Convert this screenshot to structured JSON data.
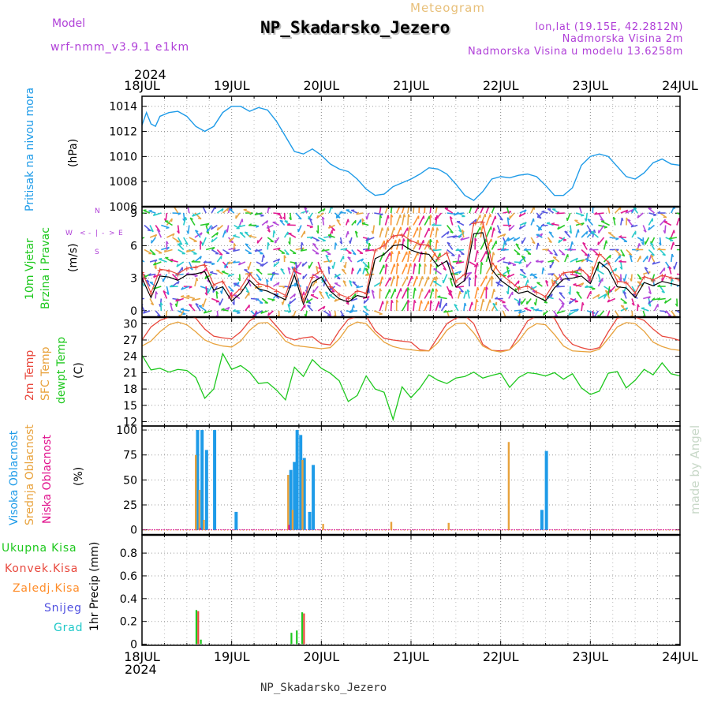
{
  "header": {
    "model_label": "Model",
    "model_name": "wrf-nmm_v3.9.1 e1km",
    "meteogram_label": "Meteogram",
    "station_title": "NP_Skadarsko_Jezero",
    "lonlat": "lon,lat (19.15E, 42.2812N)",
    "elevation": "Nadmorska Visina 2m",
    "model_elevation": "Nadmorska Visina u modelu 13.6258m",
    "year_top": "2024",
    "year_bottom": "2024",
    "footer_station": "NP_Skadarsko_Jezero",
    "credit": "made by Angel"
  },
  "colors": {
    "pressure": "#1e9be8",
    "temp2m": "#e8473c",
    "sfc": "#e8a23c",
    "dewpt": "#1ec81e",
    "high_cloud": "#1e9be8",
    "mid_cloud": "#e8a23c",
    "low_cloud": "#e0108c",
    "total_precip": "#1ec81e",
    "convective": "#e8473c",
    "frozen": "#ff8c28",
    "snow": "#5050e0",
    "graupel": "#1ec8c8",
    "wind_title": "#1ec81e",
    "compass": "#b040d8"
  },
  "chart_data": [
    {
      "type": "line",
      "panel": "pressure",
      "title_lines": [
        "Pritisak na nivou mora"
      ],
      "ylabel": "(hPa)",
      "x_ticks": [
        "18JUL",
        "19JUL",
        "20JUL",
        "21JUL",
        "22JUL",
        "23JUL",
        "24JUL"
      ],
      "ylim": [
        1006,
        1014.8
      ],
      "yticks": [
        1006,
        1008,
        1010,
        1012,
        1014
      ],
      "grid": true,
      "series": [
        {
          "x": [
            0,
            0.05,
            0.1,
            0.15,
            0.2,
            0.3,
            0.4,
            0.5,
            0.6,
            0.7,
            0.8,
            0.9,
            1.0,
            1.1,
            1.2,
            1.3,
            1.4,
            1.5,
            1.6,
            1.7,
            1.8,
            1.9,
            2.0,
            2.1,
            2.2,
            2.3,
            2.4,
            2.5,
            2.6,
            2.7,
            2.8,
            2.9,
            3.0,
            3.1,
            3.2,
            3.3,
            3.4,
            3.5,
            3.6,
            3.7,
            3.8,
            3.9,
            4.0,
            4.1,
            4.2,
            4.3,
            4.4,
            4.5,
            4.6,
            4.7,
            4.8,
            4.9,
            5.0,
            5.1,
            5.2,
            5.3,
            5.4,
            5.5,
            5.6,
            5.7,
            5.8,
            5.9,
            6.0
          ],
          "y": [
            1012.5,
            1013.5,
            1012.6,
            1012.4,
            1013.2,
            1013.5,
            1013.6,
            1013.2,
            1012.4,
            1012.0,
            1012.4,
            1013.5,
            1014.0,
            1014.0,
            1013.6,
            1013.9,
            1013.7,
            1012.8,
            1011.6,
            1010.4,
            1010.2,
            1010.6,
            1010.1,
            1009.4,
            1009.0,
            1008.8,
            1008.2,
            1007.4,
            1006.9,
            1007.0,
            1007.6,
            1007.9,
            1008.2,
            1008.6,
            1009.1,
            1009.0,
            1008.6,
            1007.8,
            1006.9,
            1006.5,
            1007.2,
            1008.2,
            1008.4,
            1008.3,
            1008.5,
            1008.6,
            1008.4,
            1007.7,
            1006.9,
            1006.9,
            1007.5,
            1009.3,
            1010.0,
            1010.2,
            1010.0,
            1009.2,
            1008.4,
            1008.2,
            1008.7,
            1009.5,
            1009.8,
            1009.4,
            1009.3
          ]
        }
      ]
    },
    {
      "type": "line",
      "panel": "wind",
      "title_lines": [
        "10m Vjetar",
        "Brzina i Pravac"
      ],
      "ylabel": "(m/s)",
      "compass": [
        "W",
        "<",
        "-",
        "|",
        "-",
        ">",
        "E",
        "S",
        "N"
      ],
      "ylim": [
        -0.6,
        9.6
      ],
      "yticks": [
        0,
        3,
        6,
        9
      ],
      "grid": true,
      "series": [
        {
          "name": "wind speed",
          "x": [
            0,
            0.1,
            0.2,
            0.3,
            0.4,
            0.5,
            0.6,
            0.7,
            0.8,
            0.9,
            1.0,
            1.1,
            1.2,
            1.3,
            1.4,
            1.5,
            1.6,
            1.7,
            1.8,
            1.9,
            2.0,
            2.1,
            2.2,
            2.3,
            2.4,
            2.5,
            2.6,
            2.7,
            2.8,
            2.9,
            3.0,
            3.1,
            3.2,
            3.3,
            3.4,
            3.5,
            3.6,
            3.7,
            3.8,
            3.9,
            4.0,
            4.1,
            4.2,
            4.3,
            4.4,
            4.5,
            4.6,
            4.7,
            4.8,
            4.9,
            5.0,
            5.1,
            5.2,
            5.3,
            5.4,
            5.5,
            5.6,
            5.7,
            5.8,
            5.9,
            6.0
          ],
          "y": [
            3.0,
            1.2,
            3.2,
            3.1,
            2.8,
            3.3,
            3.4,
            3.6,
            1.9,
            2.2,
            0.9,
            1.6,
            2.8,
            2.0,
            1.8,
            1.4,
            1.0,
            3.3,
            0.6,
            2.6,
            3.1,
            1.8,
            1.1,
            0.8,
            1.4,
            1.2,
            4.8,
            5.2,
            6.0,
            6.1,
            5.6,
            5.3,
            5.2,
            4.1,
            4.6,
            2.2,
            2.8,
            7.1,
            7.2,
            3.8,
            2.8,
            2.2,
            1.6,
            1.8,
            1.3,
            0.9,
            2.1,
            2.9,
            3.0,
            3.2,
            2.5,
            4.5,
            3.8,
            2.2,
            2.1,
            1.2,
            2.6,
            2.3,
            2.7,
            2.5,
            2.3
          ]
        }
      ]
    },
    {
      "type": "line",
      "panel": "temperature",
      "title_lines": [
        "2m Temp",
        "SFC Temp",
        "dewpt Temp"
      ],
      "ylabel": "(C)",
      "ylim": [
        11.2,
        31.2
      ],
      "yticks": [
        12,
        15,
        18,
        21,
        24,
        27,
        30
      ],
      "grid": true,
      "x": [
        0,
        0.1,
        0.2,
        0.3,
        0.4,
        0.5,
        0.6,
        0.7,
        0.8,
        0.9,
        1.0,
        1.1,
        1.2,
        1.3,
        1.4,
        1.5,
        1.6,
        1.7,
        1.8,
        1.9,
        2.0,
        2.1,
        2.2,
        2.3,
        2.4,
        2.5,
        2.6,
        2.7,
        2.8,
        2.9,
        3.0,
        3.1,
        3.2,
        3.3,
        3.4,
        3.5,
        3.6,
        3.7,
        3.8,
        3.9,
        4.0,
        4.1,
        4.2,
        4.3,
        4.4,
        4.5,
        4.6,
        4.7,
        4.8,
        4.9,
        5.0,
        5.1,
        5.2,
        5.3,
        5.4,
        5.5,
        5.6,
        5.7,
        5.8,
        5.9,
        6.0
      ],
      "series": [
        {
          "name": "2m Temp",
          "y": [
            27.0,
            29.4,
            30.6,
            31.2,
            31.6,
            31.7,
            31.0,
            29.0,
            27.7,
            27.4,
            27.2,
            28.5,
            30.5,
            31.6,
            31.4,
            29.5,
            27.6,
            27.0,
            27.4,
            27.6,
            26.3,
            26.1,
            28.7,
            30.8,
            31.3,
            31.4,
            28.7,
            27.3,
            27.0,
            26.8,
            26.6,
            25.2,
            25.0,
            27.5,
            30.0,
            31.0,
            31.5,
            30.0,
            26.2,
            25.1,
            25.0,
            25.2,
            27.8,
            30.5,
            31.4,
            31.6,
            31.0,
            28.0,
            26.2,
            25.6,
            25.2,
            25.6,
            28.5,
            31.0,
            31.3,
            31.2,
            30.6,
            29.0,
            27.7,
            27.4,
            26.9
          ]
        },
        {
          "name": "SFC Temp",
          "y": [
            25.9,
            26.8,
            28.5,
            29.8,
            30.3,
            29.8,
            28.5,
            27.0,
            26.3,
            25.9,
            25.7,
            26.8,
            28.8,
            30.1,
            30.2,
            28.8,
            26.8,
            26.0,
            25.8,
            25.6,
            25.4,
            25.6,
            27.2,
            29.5,
            30.3,
            30.0,
            28.2,
            26.6,
            25.8,
            25.4,
            25.2,
            25.0,
            25.0,
            26.5,
            28.8,
            30.0,
            30.1,
            28.3,
            25.9,
            25.1,
            24.8,
            25.2,
            26.8,
            29.0,
            30.0,
            29.8,
            28.0,
            25.9,
            25.0,
            24.9,
            24.8,
            25.3,
            27.3,
            29.4,
            30.2,
            30.0,
            28.6,
            26.6,
            25.8,
            25.3,
            25.1
          ]
        },
        {
          "name": "dewpt Temp",
          "y": [
            24.2,
            21.5,
            21.8,
            21.1,
            21.6,
            21.4,
            20.1,
            16.3,
            18.0,
            24.5,
            21.6,
            22.3,
            21.1,
            19.0,
            19.2,
            17.8,
            16.0,
            22.0,
            20.3,
            23.4,
            21.8,
            20.9,
            19.5,
            15.7,
            16.8,
            20.4,
            18.0,
            17.4,
            12.4,
            18.4,
            16.4,
            18.2,
            20.6,
            19.6,
            19.0,
            20.0,
            20.3,
            21.1,
            20.0,
            20.5,
            20.9,
            18.3,
            20.1,
            21.0,
            20.8,
            20.4,
            21.0,
            19.8,
            20.8,
            18.2,
            17.0,
            17.6,
            20.9,
            21.2,
            18.2,
            19.6,
            21.6,
            20.6,
            22.8,
            20.8,
            20.4
          ]
        }
      ]
    },
    {
      "type": "bar",
      "panel": "cloud",
      "title_lines": [
        "Visoka Oblacnost",
        "Srednja Oblacnost",
        "Niska Oblacnost"
      ],
      "ylabel": "(%)",
      "ylim": [
        -5,
        104
      ],
      "yticks": [
        0,
        25,
        50,
        75,
        100
      ],
      "grid": true,
      "series": [
        {
          "name": "Visoka Oblacnost",
          "x": [
            0.62,
            0.67,
            0.72,
            0.81,
            1.05,
            1.66,
            1.7,
            1.73,
            1.77,
            1.81,
            1.87,
            1.91,
            4.46,
            4.51
          ],
          "values": [
            100,
            100,
            80,
            100,
            18,
            60,
            68,
            100,
            95,
            72,
            18,
            65,
            20,
            79
          ]
        },
        {
          "name": "Srednja Oblacnost",
          "x": [
            0.6,
            0.64,
            0.69,
            1.63,
            1.68,
            1.79,
            2.02,
            2.78,
            3.42,
            4.09
          ],
          "values": [
            75,
            40,
            10,
            55,
            20,
            70,
            6,
            8,
            7,
            88
          ]
        },
        {
          "name": "Niska Oblacnost",
          "x": [
            0.65,
            1.64
          ],
          "values": [
            2,
            5
          ]
        }
      ]
    },
    {
      "type": "bar",
      "panel": "precip",
      "title_lines": [
        "Ukupna Kisa",
        "Konvek.Kisa",
        "Zaledj.Kisa",
        "Snijeg",
        "Grad"
      ],
      "ylabel": "1hr Precip (mm)",
      "ylim": [
        -0.01,
        0.96
      ],
      "yticks": [
        0,
        0.2,
        0.4,
        0.6,
        0.8
      ],
      "grid": true,
      "series": [
        {
          "name": "Ukupna Kisa",
          "x": [
            0.61,
            0.66,
            1.67,
            1.73,
            1.79
          ],
          "values": [
            0.3,
            0.04,
            0.1,
            0.12,
            0.28
          ]
        },
        {
          "name": "Konvek.Kisa",
          "x": [
            0.62,
            1.8
          ],
          "values": [
            0.29,
            0.27
          ]
        }
      ]
    }
  ]
}
